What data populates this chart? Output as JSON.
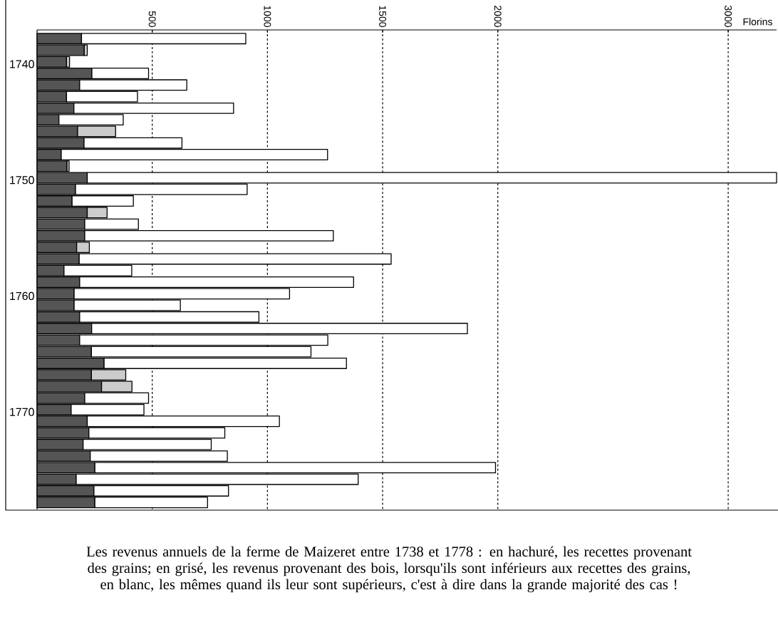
{
  "chart_data": {
    "type": "bar",
    "orientation": "horizontal",
    "stacked": true,
    "categories": [
      null,
      null,
      "1740",
      null,
      null,
      null,
      null,
      null,
      null,
      null,
      null,
      null,
      "1750",
      null,
      null,
      null,
      null,
      null,
      null,
      null,
      null,
      null,
      "1760",
      null,
      null,
      null,
      null,
      null,
      null,
      null,
      null,
      null,
      "1770",
      null,
      null,
      null,
      null,
      null,
      null,
      null,
      null
    ],
    "series": [
      {
        "color": "#555555",
        "values": [
          193,
          205,
          128,
          238,
          185,
          128,
          160,
          95,
          176,
          204,
          105,
          130,
          218,
          167,
          152,
          218,
          207,
          207,
          172,
          183,
          117,
          185,
          161,
          161,
          185,
          237,
          185,
          236,
          291,
          236,
          280,
          207,
          148,
          218,
          225,
          200,
          231,
          251,
          170,
          247,
          251
        ]
      },
      {
        "colors": [
          "#ffffff",
          "#cccccc",
          "#cccccc",
          "#ffffff",
          "#ffffff",
          "#ffffff",
          "#ffffff",
          "#ffffff",
          "#cccccc",
          "#ffffff",
          "#ffffff",
          "#cccccc",
          "#ffffff",
          "#ffffff",
          "#ffffff",
          "#cccccc",
          "#ffffff",
          "#ffffff",
          "#cccccc",
          "#ffffff",
          "#ffffff",
          "#ffffff",
          "#ffffff",
          "#ffffff",
          "#ffffff",
          "#ffffff",
          "#ffffff",
          "#ffffff",
          "#ffffff",
          "#cccccc",
          "#cccccc",
          "#ffffff",
          "#ffffff",
          "#ffffff",
          "#ffffff",
          "#ffffff",
          "#ffffff",
          "#ffffff",
          "#ffffff",
          "#ffffff",
          "#ffffff"
        ],
        "values": [
          713,
          13,
          13,
          246,
          465,
          308,
          693,
          279,
          165,
          425,
          1156,
          9,
          2992,
          745,
          266,
          86,
          233,
          1079,
          55,
          1354,
          294,
          1189,
          935,
          461,
          778,
          1631,
          1077,
          953,
          1052,
          149,
          132,
          277,
          316,
          834,
          590,
          556,
          595,
          1739,
          1224,
          584,
          489
        ]
      }
    ],
    "xlim": [
      0,
      3210
    ],
    "xticks": [
      500,
      1000,
      1500,
      2000,
      3000
    ],
    "xlabel": "Florins",
    "grid": "x",
    "annotations": [
      "Les revenus annuels de la ferme de Maizeret entre 1738 et 1778 : en hachuré, les recettes provenant des grains; en grisé, les revenus provenant des bois, lorsqu'ils sont inférieurs aux recettes des grains, en blanc, les mêmes quand ils leur sont supérieurs, c'est à dire dans la grande majorité des cas !"
    ]
  }
}
